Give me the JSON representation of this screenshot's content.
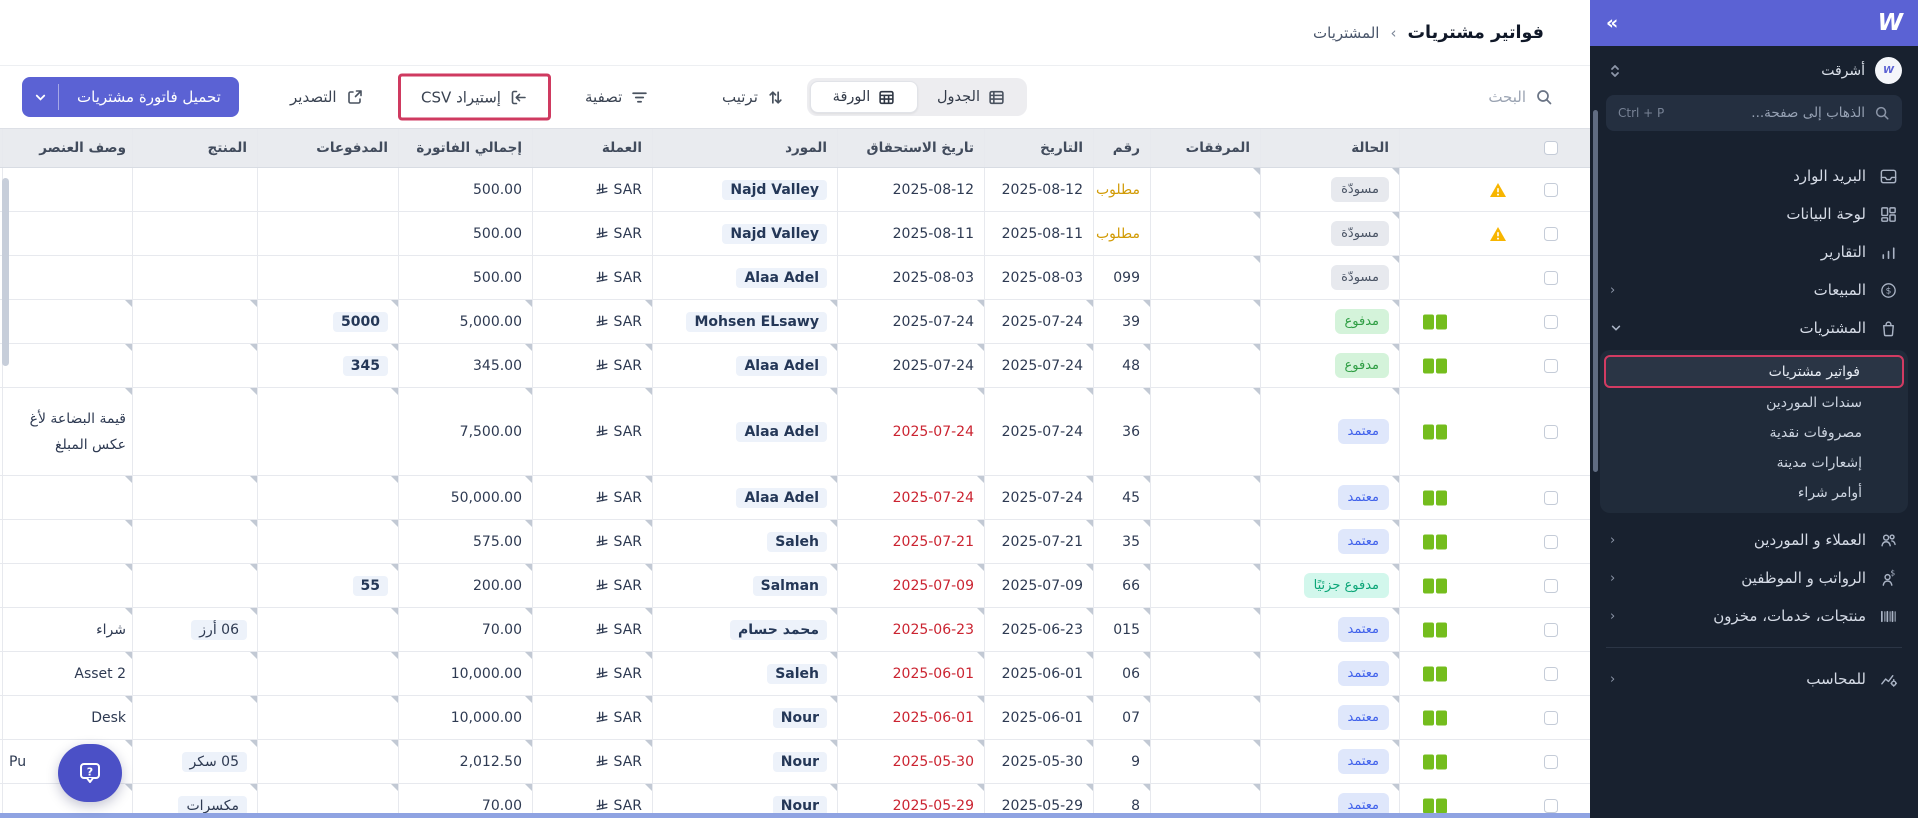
{
  "app": {
    "logo": "W",
    "collapse_icon": "»"
  },
  "sidebar": {
    "user": {
      "name": "أشرقت"
    },
    "search": {
      "placeholder": "الذهاب إلى صفحة...",
      "shortcut": "Ctrl + P"
    },
    "items": [
      {
        "label": "البريد الوارد",
        "icon": "inbox-icon",
        "expandable": false
      },
      {
        "label": "لوحة البيانات",
        "icon": "dashboard-icon",
        "expandable": false
      },
      {
        "label": "التقارير",
        "icon": "reports-icon",
        "expandable": false
      },
      {
        "label": "المبيعات",
        "icon": "sales-icon",
        "expandable": true
      },
      {
        "label": "المشتريات",
        "icon": "purchases-icon",
        "expandable": true,
        "expanded": true
      },
      {
        "label": "العملاء و الموردين",
        "icon": "customers-icon",
        "expandable": true
      },
      {
        "label": "الرواتب و الموظفين",
        "icon": "payroll-icon",
        "expandable": true
      },
      {
        "label": "منتجات، خدمات، مخزون",
        "icon": "products-icon",
        "expandable": true
      },
      {
        "label": "للمحاسب",
        "icon": "accountant-icon",
        "expandable": true
      }
    ],
    "purchases_submenu": [
      "فواتير مشتريات",
      "سندات الموردين",
      "مصروفات نقدية",
      "إشعارات مدينة",
      "أوامر شراء"
    ],
    "active_submenu_item": "فواتير مشتريات"
  },
  "breadcrumb": {
    "parent": "المشتريات",
    "separator": "‹",
    "current": "فواتير مشتريات"
  },
  "toolbar": {
    "upload_label": "تحميل فاتورة مشتريات",
    "export_label": "التصدير",
    "import_label": "إستيراد CSV",
    "filter_label": "تصفية",
    "sort_label": "ترتيب",
    "view_table_label": "الجدول",
    "view_sheet_label": "الورقة",
    "active_view": "الورقة",
    "search_label": "البحث"
  },
  "colors": {
    "accent_indigo": "#5b62d4",
    "highlight_crimson": "#cf3a60",
    "overdue_red": "#cb2431",
    "required_amber": "#d29b06",
    "attachment_green": "#74bd1d",
    "warning_yellow": "#f7b500"
  },
  "table": {
    "columns": [
      {
        "key": "selection",
        "label": ""
      },
      {
        "key": "status",
        "label": "الحالة"
      },
      {
        "key": "attachments",
        "label": "المرفقات"
      },
      {
        "key": "number",
        "label": "رقم"
      },
      {
        "key": "date",
        "label": "التاريخ"
      },
      {
        "key": "due",
        "label": "تاريخ الاستحقاق"
      },
      {
        "key": "vendor",
        "label": "المورد"
      },
      {
        "key": "currency",
        "label": "العملة"
      },
      {
        "key": "total",
        "label": "إجمالي الفاتورة"
      },
      {
        "key": "payments",
        "label": "المدفوعات"
      },
      {
        "key": "product",
        "label": "المنتج"
      },
      {
        "key": "desc",
        "label": "وصف العنصر"
      }
    ],
    "rows": [
      {
        "status": {
          "label": "مسودّة",
          "type": "draft"
        },
        "warning": true,
        "attachment": false,
        "number": "مطلوب",
        "number_required": true,
        "date": "2025-08-12",
        "due": "2025-08-12",
        "overdue": false,
        "vendor": "Najd Valley",
        "currency": "SAR",
        "total": "500.00",
        "payments": "",
        "product": "",
        "desc": ""
      },
      {
        "status": {
          "label": "مسودّة",
          "type": "draft"
        },
        "warning": true,
        "attachment": false,
        "number": "مطلوب",
        "number_required": true,
        "date": "2025-08-11",
        "due": "2025-08-11",
        "overdue": false,
        "vendor": "Najd Valley",
        "currency": "SAR",
        "total": "500.00",
        "payments": "",
        "product": "",
        "desc": ""
      },
      {
        "status": {
          "label": "مسودّة",
          "type": "draft"
        },
        "warning": false,
        "attachment": false,
        "number": "099",
        "date": "2025-08-03",
        "due": "2025-08-03",
        "overdue": false,
        "vendor": "Alaa Adel",
        "currency": "SAR",
        "total": "500.00",
        "payments": "",
        "product": "",
        "desc": ""
      },
      {
        "status": {
          "label": "مدفوع",
          "type": "paid"
        },
        "warning": false,
        "attachment": true,
        "number": "39",
        "date": "2025-07-24",
        "due": "2025-07-24",
        "overdue": false,
        "vendor": "Mohsen ELsawy",
        "currency": "SAR",
        "total": "5,000.00",
        "payments": "5000",
        "product": "",
        "desc": ""
      },
      {
        "status": {
          "label": "مدفوع",
          "type": "paid"
        },
        "warning": false,
        "attachment": true,
        "number": "48",
        "date": "2025-07-24",
        "due": "2025-07-24",
        "overdue": false,
        "vendor": "Alaa Adel",
        "currency": "SAR",
        "total": "345.00",
        "payments": "345",
        "product": "",
        "desc": ""
      },
      {
        "status": {
          "label": "معتمد",
          "type": "approved"
        },
        "warning": false,
        "attachment": true,
        "number": "36",
        "date": "2025-07-24",
        "due": "2025-07-24",
        "overdue": true,
        "vendor": "Alaa Adel",
        "currency": "SAR",
        "total": "7,500.00",
        "payments": "",
        "product": "",
        "desc": "قيمة البضاعة لأغ\nعكس المبلغ",
        "tall": true
      },
      {
        "status": {
          "label": "معتمد",
          "type": "approved"
        },
        "warning": false,
        "attachment": true,
        "number": "45",
        "date": "2025-07-24",
        "due": "2025-07-24",
        "overdue": true,
        "vendor": "Alaa Adel",
        "currency": "SAR",
        "total": "50,000.00",
        "payments": "",
        "product": "",
        "desc": ""
      },
      {
        "status": {
          "label": "معتمد",
          "type": "approved"
        },
        "warning": false,
        "attachment": true,
        "number": "35",
        "date": "2025-07-21",
        "due": "2025-07-21",
        "overdue": true,
        "vendor": "Saleh",
        "currency": "SAR",
        "total": "575.00",
        "payments": "",
        "product": "",
        "desc": ""
      },
      {
        "status": {
          "label": "مدفوع جزئيًا",
          "type": "partial"
        },
        "warning": false,
        "attachment": true,
        "number": "66",
        "date": "2025-07-09",
        "due": "2025-07-09",
        "overdue": true,
        "vendor": "Salman",
        "currency": "SAR",
        "total": "200.00",
        "payments": "55",
        "product": "",
        "desc": ""
      },
      {
        "status": {
          "label": "معتمد",
          "type": "approved"
        },
        "warning": false,
        "attachment": true,
        "number": "015",
        "date": "2025-06-23",
        "due": "2025-06-23",
        "overdue": true,
        "vendor": "محمد حسام",
        "currency": "SAR",
        "total": "70.00",
        "payments": "",
        "product": "06 أرز",
        "desc": "شراء"
      },
      {
        "status": {
          "label": "معتمد",
          "type": "approved"
        },
        "warning": false,
        "attachment": true,
        "number": "06",
        "date": "2025-06-01",
        "due": "2025-06-01",
        "overdue": true,
        "vendor": "Saleh",
        "currency": "SAR",
        "total": "10,000.00",
        "payments": "",
        "product": "",
        "desc": "Asset 2"
      },
      {
        "status": {
          "label": "معتمد",
          "type": "approved"
        },
        "warning": false,
        "attachment": true,
        "number": "07",
        "date": "2025-06-01",
        "due": "2025-06-01",
        "overdue": true,
        "vendor": "Nour",
        "currency": "SAR",
        "total": "10,000.00",
        "payments": "",
        "product": "",
        "desc": "Desk"
      },
      {
        "status": {
          "label": "معتمد",
          "type": "approved"
        },
        "warning": false,
        "attachment": true,
        "number": "9",
        "date": "2025-05-30",
        "due": "2025-05-30",
        "overdue": true,
        "vendor": "Nour",
        "currency": "SAR",
        "total": "2,012.50",
        "payments": "",
        "product": "05 سكر",
        "desc": "Pu",
        "desc_ltr": true
      },
      {
        "status": {
          "label": "معتمد",
          "type": "approved"
        },
        "warning": false,
        "attachment": true,
        "number": "8",
        "date": "2025-05-29",
        "due": "2025-05-29",
        "overdue": true,
        "vendor": "Nour",
        "currency": "SAR",
        "total": "70.00",
        "payments": "",
        "product": "مكسرات",
        "desc": ""
      }
    ]
  }
}
